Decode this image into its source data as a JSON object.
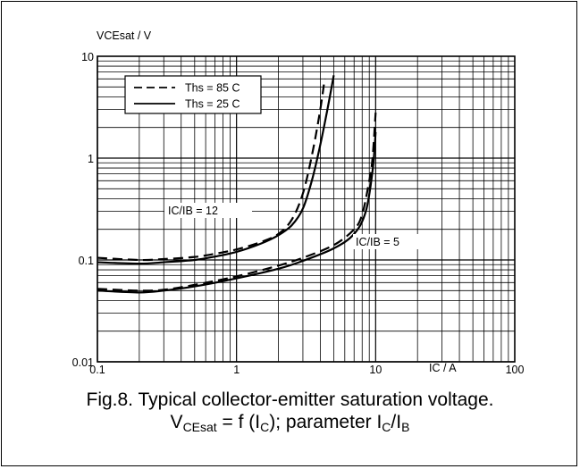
{
  "chart_data": {
    "type": "line",
    "xscale": "log",
    "yscale": "log",
    "xlim": [
      0.1,
      100
    ],
    "ylim": [
      0.01,
      10
    ],
    "xlabel": "IC / A",
    "ylabel": "VCEsat / V",
    "xticks": [
      "0.1",
      "1",
      "10",
      "100"
    ],
    "yticks": [
      "0.01",
      "0.1",
      "1",
      "10"
    ],
    "grid": true,
    "legend": {
      "placement": "top-left",
      "entries": [
        {
          "label": "Ths = 85 C",
          "style": "dashed"
        },
        {
          "label": "Ths = 25 C",
          "style": "solid"
        }
      ]
    },
    "annotations": [
      "IC/IB = 12",
      "IC/IB = 5"
    ],
    "series": [
      {
        "group": "IC/IB = 12",
        "style": "dashed",
        "x": [
          0.1,
          0.2,
          0.3,
          0.5,
          0.7,
          1.0,
          1.5,
          2.0,
          2.5,
          3.0,
          3.5,
          4.0,
          4.3
        ],
        "y": [
          0.105,
          0.1,
          0.102,
          0.107,
          0.115,
          0.127,
          0.15,
          0.18,
          0.25,
          0.45,
          1.1,
          3.0,
          6.0
        ]
      },
      {
        "group": "IC/IB = 12",
        "style": "solid",
        "x": [
          0.1,
          0.2,
          0.3,
          0.5,
          0.7,
          1.0,
          1.5,
          2.0,
          2.5,
          3.0,
          3.5,
          4.0,
          4.5,
          5.0
        ],
        "y": [
          0.095,
          0.092,
          0.095,
          0.1,
          0.108,
          0.12,
          0.145,
          0.175,
          0.22,
          0.32,
          0.62,
          1.35,
          3.0,
          6.5
        ]
      },
      {
        "group": "IC/IB = 5",
        "style": "dashed",
        "x": [
          0.1,
          0.2,
          0.3,
          0.5,
          1.0,
          2.0,
          3.0,
          5.0,
          7.0,
          8.0,
          9.0,
          9.5,
          10.0
        ],
        "y": [
          0.052,
          0.05,
          0.051,
          0.057,
          0.069,
          0.088,
          0.105,
          0.14,
          0.2,
          0.28,
          0.6,
          1.0,
          2.8
        ]
      },
      {
        "group": "IC/IB = 5",
        "style": "solid",
        "x": [
          0.1,
          0.2,
          0.3,
          0.5,
          1.0,
          2.0,
          3.0,
          5.0,
          7.0,
          8.5,
          9.5,
          10.0
        ],
        "y": [
          0.05,
          0.048,
          0.05,
          0.055,
          0.066,
          0.082,
          0.098,
          0.13,
          0.18,
          0.3,
          0.75,
          1.8
        ]
      }
    ]
  },
  "caption": {
    "line1": "Fig.8.   Typical collector-emitter saturation voltage.",
    "eq_lhs": "V",
    "eq_lhs_sub": "CEsat",
    "eq_mid1": " = f (I",
    "eq_mid1_sub": "C",
    "eq_mid2": "); parameter I",
    "eq_mid2_sub": "C",
    "eq_mid3": "/I",
    "eq_mid3_sub": "B"
  }
}
